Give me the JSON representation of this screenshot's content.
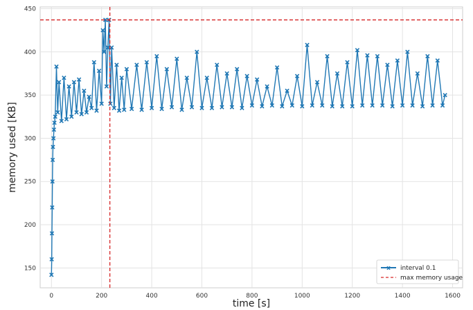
{
  "chart_data": {
    "type": "line",
    "xlabel": "time [s]",
    "ylabel": "memory used [KB]",
    "xlim": [
      -45,
      1640
    ],
    "ylim": [
      127,
      452
    ],
    "xticks": [
      0,
      200,
      400,
      600,
      800,
      1000,
      1200,
      1400,
      1600
    ],
    "yticks": [
      150,
      200,
      250,
      300,
      350,
      400,
      450
    ],
    "x_tick_labels": [
      "0",
      "200",
      "400",
      "600",
      "800",
      "1000",
      "1200",
      "1400",
      "1600"
    ],
    "y_tick_labels": [
      "150",
      "200",
      "250",
      "300",
      "350",
      "400",
      "450"
    ],
    "grid": true,
    "legend_position": "lower-right",
    "series": [
      {
        "name": "interval 0.1",
        "color": "#1f77b4",
        "marker": "x",
        "style": "solid",
        "x": [
          0,
          1,
          2,
          3,
          4,
          5,
          6,
          8,
          10,
          12,
          15,
          20,
          25,
          30,
          40,
          50,
          60,
          70,
          80,
          90,
          100,
          110,
          120,
          130,
          140,
          150,
          160,
          170,
          180,
          190,
          200,
          205,
          210,
          215,
          220,
          225,
          230,
          235,
          240,
          250,
          260,
          270,
          280,
          290,
          300,
          320,
          340,
          360,
          380,
          400,
          420,
          440,
          460,
          480,
          500,
          520,
          540,
          560,
          580,
          600,
          620,
          640,
          660,
          680,
          700,
          720,
          740,
          760,
          780,
          800,
          820,
          840,
          860,
          880,
          900,
          920,
          940,
          960,
          980,
          1000,
          1020,
          1040,
          1060,
          1080,
          1100,
          1120,
          1140,
          1160,
          1180,
          1200,
          1220,
          1240,
          1260,
          1280,
          1300,
          1320,
          1340,
          1360,
          1380,
          1400,
          1420,
          1440,
          1460,
          1480,
          1500,
          1520,
          1540,
          1560,
          1570
        ],
        "y": [
          142,
          160,
          190,
          220,
          250,
          275,
          290,
          300,
          310,
          318,
          325,
          383,
          330,
          365,
          320,
          370,
          322,
          360,
          325,
          365,
          330,
          368,
          328,
          355,
          330,
          348,
          335,
          388,
          332,
          378,
          340,
          425,
          400,
          437,
          360,
          405,
          437,
          340,
          405,
          335,
          385,
          332,
          370,
          333,
          380,
          334,
          385,
          333,
          388,
          335,
          395,
          334,
          380,
          336,
          392,
          333,
          370,
          336,
          400,
          335,
          370,
          335,
          385,
          336,
          375,
          336,
          380,
          335,
          372,
          338,
          368,
          337,
          360,
          338,
          382,
          337,
          355,
          338,
          372,
          337,
          408,
          338,
          365,
          338,
          395,
          337,
          375,
          337,
          388,
          337,
          402,
          338,
          396,
          338,
          395,
          338,
          385,
          337,
          390,
          338,
          400,
          338,
          375,
          337,
          395,
          338,
          390,
          338,
          350
        ]
      },
      {
        "name": "max memory usage",
        "color": "#d62728",
        "style": "dashed",
        "horizontal_y": 437,
        "vertical_x": 233
      }
    ]
  }
}
